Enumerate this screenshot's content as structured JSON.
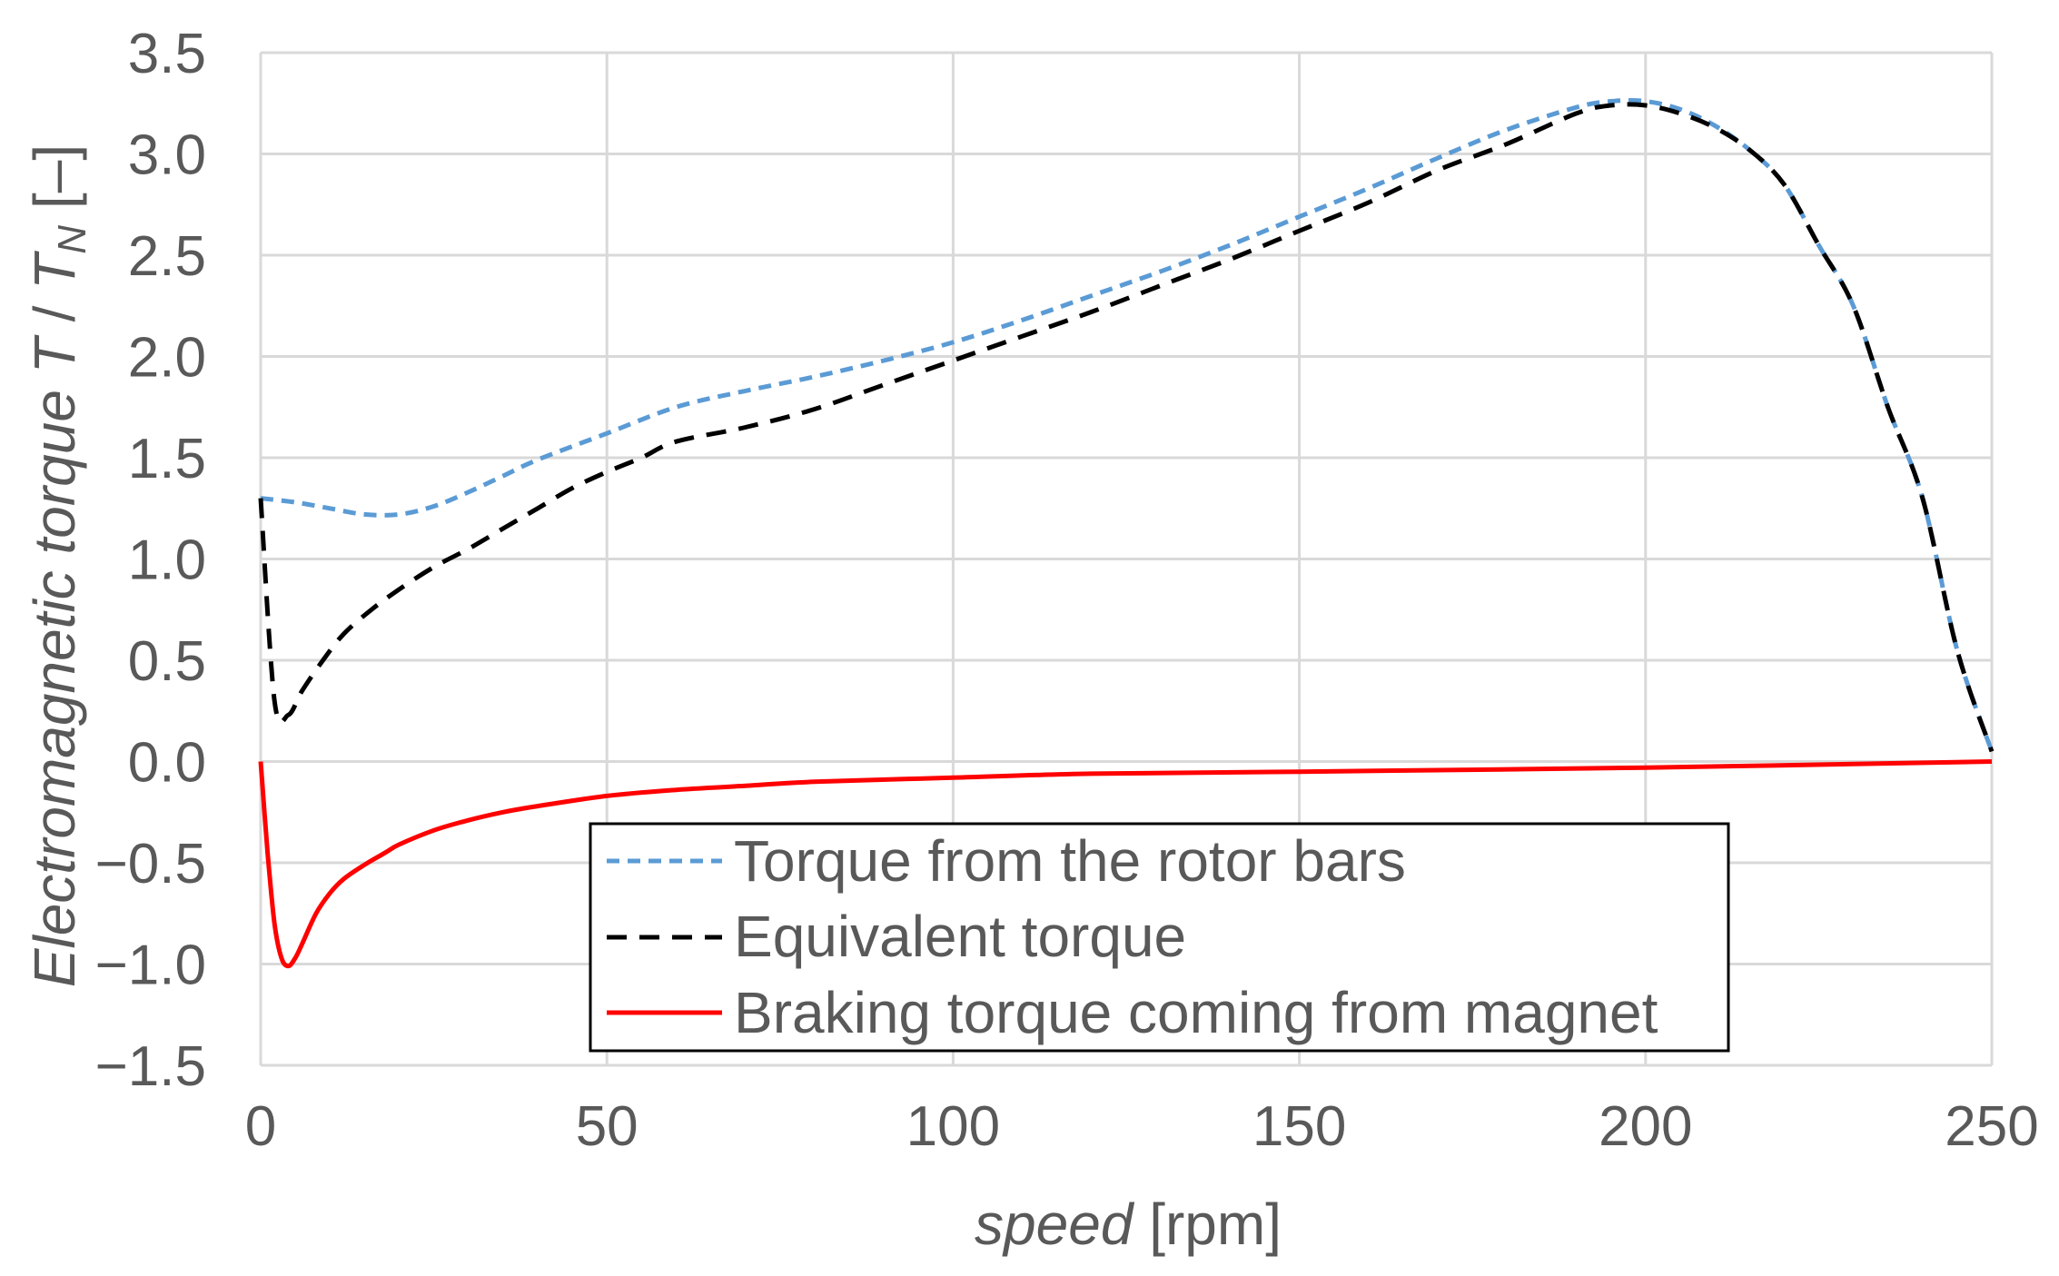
{
  "chart_data": {
    "type": "line",
    "title": "",
    "xlabel": {
      "italic": "speed",
      "plain": "[rpm]"
    },
    "ylabel": {
      "text": "Electromagnetic torque",
      "T": "T",
      "slash": "/",
      "TN": "T",
      "TN_sub": "N",
      "unit": "[–]"
    },
    "xlim": [
      0,
      250
    ],
    "ylim": [
      -1.5,
      3.5
    ],
    "xticks": [
      0,
      50,
      100,
      150,
      200,
      250
    ],
    "yticks": [
      -1.5,
      -1.0,
      -0.5,
      0.0,
      0.5,
      1.0,
      1.5,
      2.0,
      2.5,
      3.0,
      3.5
    ],
    "grid": true,
    "legend_position": "bottom-center",
    "series": [
      {
        "name": "Torque from the rotor bars",
        "color": "#5b9bd5",
        "style": "dashed",
        "x": [
          0,
          5,
          10,
          15,
          20,
          25,
          30,
          35,
          40,
          50,
          60,
          70,
          80,
          90,
          100,
          110,
          120,
          130,
          140,
          150,
          160,
          170,
          180,
          190,
          195,
          200,
          205,
          210,
          215,
          220,
          225,
          230,
          235,
          240,
          245,
          250
        ],
        "y": [
          1.3,
          1.28,
          1.25,
          1.22,
          1.22,
          1.26,
          1.33,
          1.41,
          1.49,
          1.62,
          1.75,
          1.83,
          1.9,
          1.98,
          2.07,
          2.18,
          2.3,
          2.42,
          2.55,
          2.69,
          2.83,
          2.98,
          3.12,
          3.23,
          3.26,
          3.26,
          3.22,
          3.14,
          3.02,
          2.85,
          2.55,
          2.25,
          1.75,
          1.3,
          0.55,
          0.05
        ]
      },
      {
        "name": "Equivalent torque",
        "color": "#000000",
        "style": "dashed",
        "x": [
          0,
          2,
          4,
          6,
          9,
          12,
          16,
          20,
          25,
          30,
          35,
          40,
          45,
          50,
          55,
          60,
          70,
          80,
          90,
          100,
          110,
          120,
          130,
          140,
          150,
          160,
          170,
          180,
          190,
          195,
          200,
          205,
          210,
          215,
          220,
          225,
          230,
          235,
          240,
          245,
          250
        ],
        "y": [
          1.3,
          0.3,
          0.23,
          0.35,
          0.5,
          0.63,
          0.75,
          0.85,
          0.96,
          1.05,
          1.15,
          1.25,
          1.35,
          1.43,
          1.5,
          1.58,
          1.65,
          1.74,
          1.86,
          1.98,
          2.1,
          2.22,
          2.35,
          2.48,
          2.62,
          2.76,
          2.92,
          3.05,
          3.2,
          3.24,
          3.24,
          3.2,
          3.13,
          3.02,
          2.85,
          2.55,
          2.25,
          1.75,
          1.3,
          0.55,
          0.05
        ]
      },
      {
        "name": "Braking torque coming from magnet",
        "color": "#ff0000",
        "style": "solid",
        "x": [
          0,
          1,
          2,
          3,
          4,
          5,
          6,
          8,
          10,
          12,
          15,
          18,
          20,
          25,
          30,
          35,
          40,
          50,
          60,
          70,
          80,
          100,
          120,
          150,
          200,
          250
        ],
        "y": [
          0.0,
          -0.45,
          -0.8,
          -0.97,
          -1.01,
          -0.97,
          -0.9,
          -0.75,
          -0.65,
          -0.58,
          -0.51,
          -0.45,
          -0.41,
          -0.34,
          -0.29,
          -0.25,
          -0.22,
          -0.17,
          -0.14,
          -0.12,
          -0.1,
          -0.08,
          -0.06,
          -0.05,
          -0.03,
          0.0
        ]
      }
    ]
  }
}
